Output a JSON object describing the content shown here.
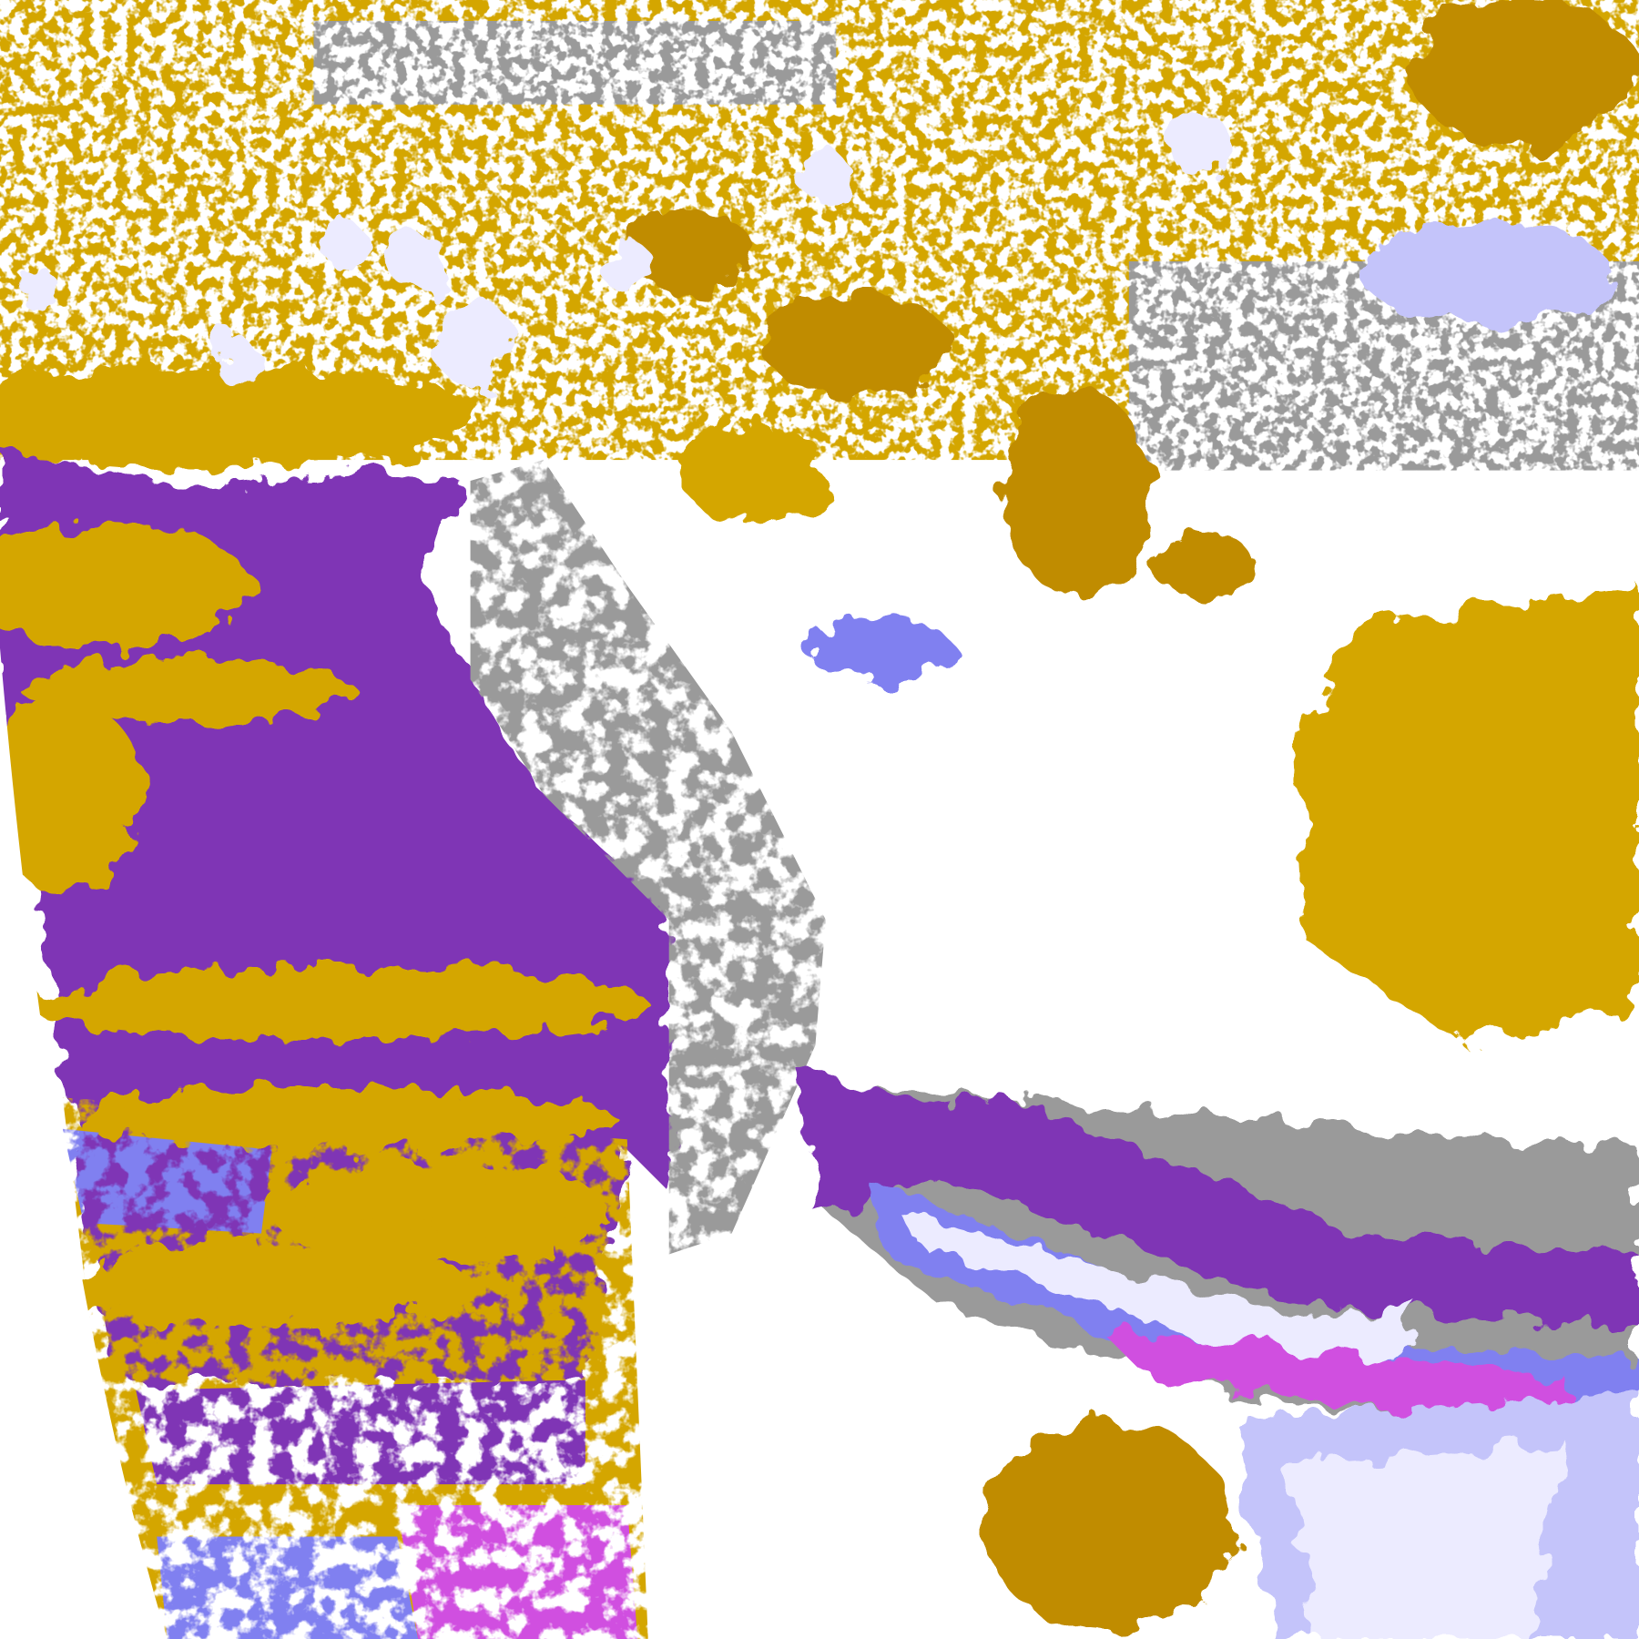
{
  "image": {
    "kind": "satellite cloud-type classification composite",
    "text": "",
    "colors": {
      "background": "#ffffff",
      "ocean_clear": "#7f35b5",
      "low_cloud_gold": "#d4a600",
      "low_cloud_dark_gold": "#c08c00",
      "mid_cloud_gray": "#9a9a9a",
      "high_cloud_lavender": "#ecebff",
      "high_cloud_light_blue": "#c4c4fa",
      "cirrus_blue": "#8080f0",
      "magenta": "#d050e0",
      "outside_disk": "#ffffff"
    }
  }
}
